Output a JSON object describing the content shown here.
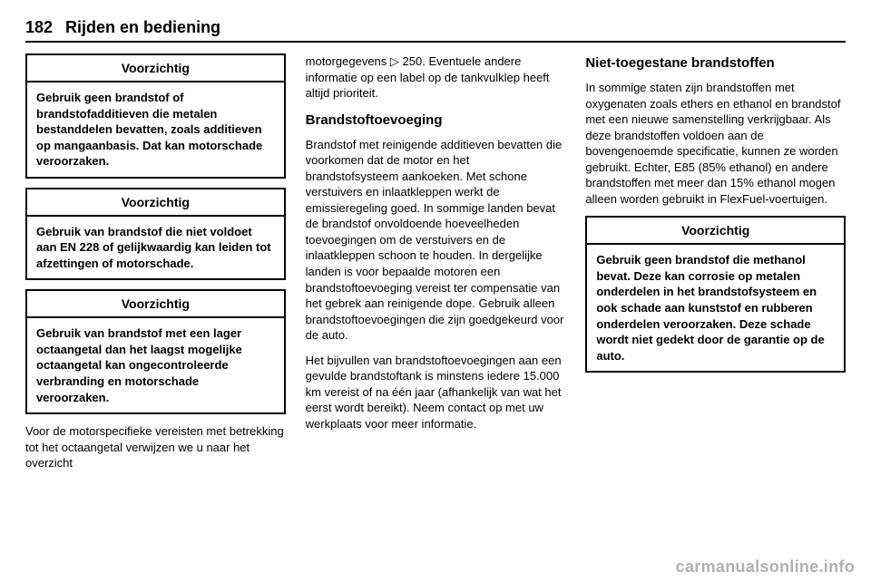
{
  "header": {
    "page_number": "182",
    "title": "Rijden en bediening"
  },
  "column1": {
    "caution1": {
      "title": "Voorzichtig",
      "body": "Gebruik geen brandstof of brandstofadditieven die metalen bestanddelen bevatten, zoals additieven op mangaanbasis. Dat kan motorschade veroorzaken."
    },
    "caution2": {
      "title": "Voorzichtig",
      "body": "Gebruik van brandstof die niet voldoet aan EN 228 of gelijkwaardig kan leiden tot afzettingen of motorschade."
    },
    "caution3": {
      "title": "Voorzichtig",
      "body": "Gebruik van brandstof met een lager octaangetal dan het laagst mogelijke octaangetal kan ongecontroleerde verbranding en motorschade veroorzaken."
    },
    "footer_para": "Voor de motorspecifieke vereisten met betrekking tot het octaangetal verwijzen we u naar het overzicht"
  },
  "column2": {
    "top_para_pre": "motorgegevens ",
    "top_arrow": "▷",
    "top_ref": " 250. ",
    "top_para_post": "Eventuele andere informatie op een label op de tankvulklep heeft altijd prioriteit.",
    "subheading": "Brandstoftoevoeging",
    "para1": "Brandstof met reinigende additieven bevatten die voorkomen dat de motor en het brandstofsysteem aankoeken. Met schone verstuivers en inlaatkleppen werkt de emissieregeling goed. In sommige landen bevat de brandstof onvoldoende hoeveelheden toevoegingen om de verstuivers en de inlaatkleppen schoon te houden. In dergelijke landen is voor bepaalde motoren een brandstoftoevoeging vereist ter compensatie van het gebrek aan reinigende dope. Gebruik alleen brandstoftoevoegingen die zijn goedgekeurd voor de auto.",
    "para2": "Het bijvullen van brandstoftoevoegingen aan een gevulde brandstoftank is minstens iedere 15.000 km vereist of na één jaar (afhankelijk van wat het eerst wordt bereikt). Neem contact op met uw werkplaats voor meer informatie."
  },
  "column3": {
    "heading": "Niet-toegestane brandstoffen",
    "para": "In sommige staten zijn brandstoffen met oxygenaten zoals ethers en ethanol en brandstof met een nieuwe samenstelling verkrijgbaar. Als deze brandstoffen voldoen aan de bovengenoemde specificatie, kunnen ze worden gebruikt. Echter, E85 (85% ethanol) en andere brandstoffen met meer dan 15% ethanol mogen alleen worden gebruikt in FlexFuel-voertuigen.",
    "caution": {
      "title": "Voorzichtig",
      "body": "Gebruik geen brandstof die methanol bevat. Deze kan corrosie op metalen onderdelen in het brandstofsysteem en ook schade aan kunststof en rubberen onderdelen veroorzaken. Deze schade wordt niet gedekt door de garantie op de auto."
    }
  },
  "watermark": "carmanualsonline.info"
}
